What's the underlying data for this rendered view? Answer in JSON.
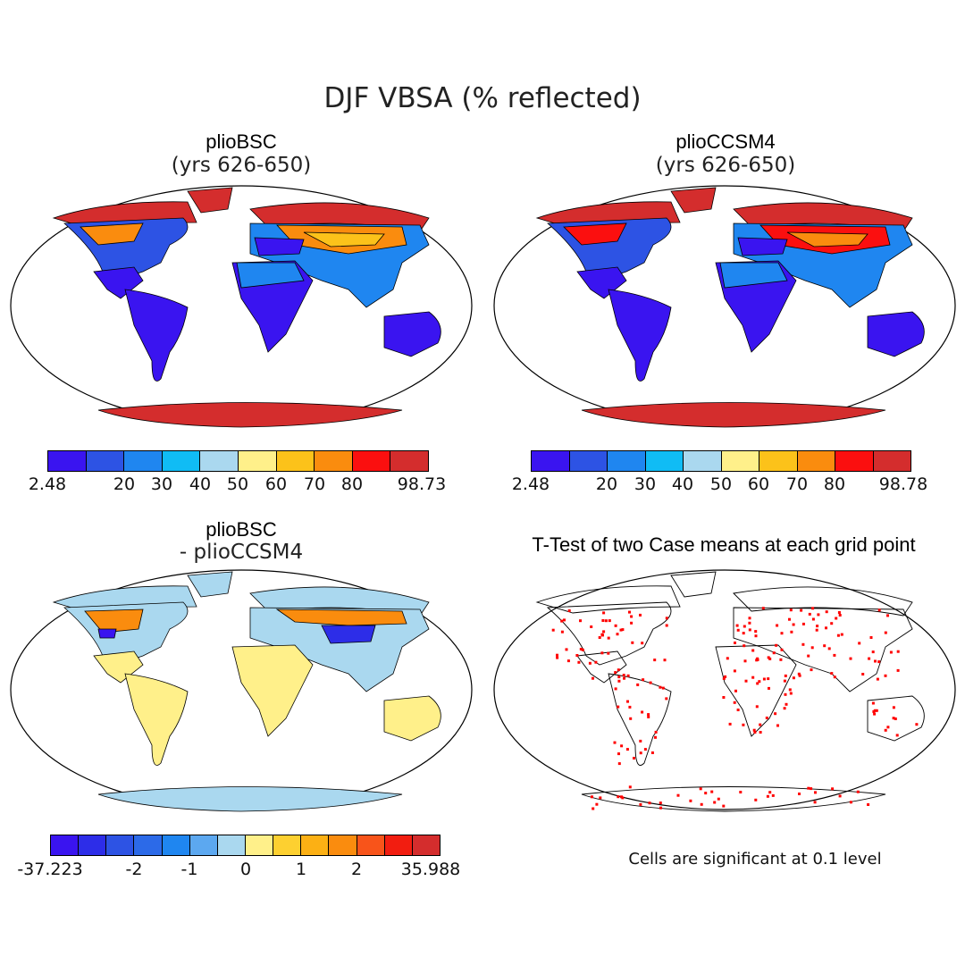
{
  "title": "DJF VBSA (% reflected)",
  "colors": {
    "abs_scale": [
      "#3a14f0",
      "#2d53e4",
      "#1f86f0",
      "#10bcf5",
      "#aad8ef",
      "#fff08a",
      "#fcc21a",
      "#fa8c0e",
      "#fb0f0f",
      "#d42d2d"
    ],
    "diff_scale": [
      "#3a14f0",
      "#2d2de8",
      "#2d53e4",
      "#2c6ae8",
      "#1f86f0",
      "#5ca8f0",
      "#aad8ef",
      "#fff08a",
      "#fdd030",
      "#fcb014",
      "#fa8c0e",
      "#f8541a",
      "#f21d10",
      "#d42d2d"
    ],
    "sig": "#ff0000",
    "land_white": "#ffffff"
  },
  "panels": [
    {
      "id": "pliobsc",
      "title": "plioBSC",
      "subtitle": "(yrs 626-650)",
      "colorbar": {
        "labels": [
          "2.48",
          "20",
          "30",
          "40",
          "50",
          "60",
          "70",
          "80",
          "98.73"
        ]
      }
    },
    {
      "id": "plioccsm4",
      "title": "plioCCSM4",
      "subtitle": "(yrs 626-650)",
      "colorbar": {
        "labels": [
          "2.48",
          "20",
          "30",
          "40",
          "50",
          "60",
          "70",
          "80",
          "98.78"
        ]
      }
    },
    {
      "id": "difference",
      "title": "plioBSC",
      "subtitle": "- plioCCSM4",
      "colorbar": {
        "labels": [
          "-37.223",
          "-2",
          "-1",
          "0",
          "1",
          "2",
          "35.988"
        ]
      }
    },
    {
      "id": "ttest",
      "title": "T-Test of two Case means at each grid point",
      "note": "Cells are significant at 0.1 level"
    }
  ]
}
